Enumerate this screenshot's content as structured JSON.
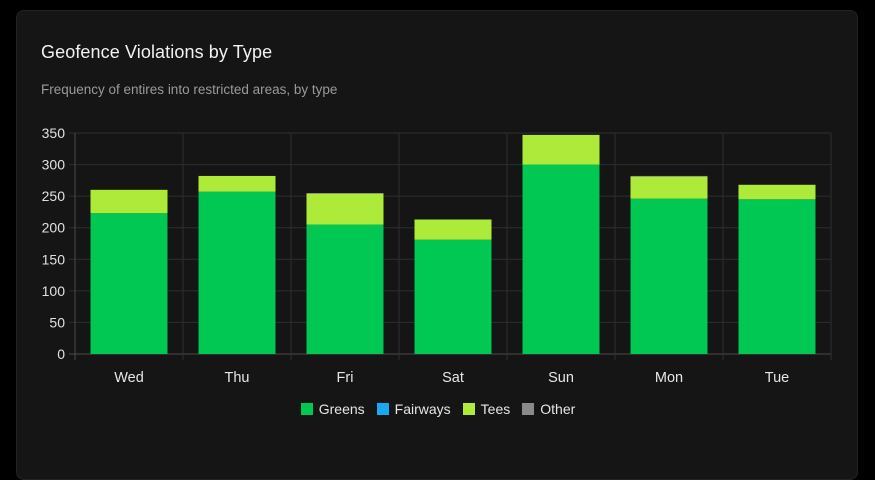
{
  "card": {
    "title": "Geofence Violations by Type",
    "subtitle": "Frequency of entires into restricted areas, by type"
  },
  "chart_data": {
    "type": "bar",
    "stacked": true,
    "title": "Geofence Violations by Type",
    "subtitle": "Frequency of entires into restricted areas, by type",
    "categories": [
      "Wed",
      "Thu",
      "Fri",
      "Sat",
      "Sun",
      "Mon",
      "Tue"
    ],
    "series": [
      {
        "name": "Greens",
        "color": "#00c853",
        "values": [
          223,
          257,
          205,
          181,
          300,
          246,
          245
        ]
      },
      {
        "name": "Fairways",
        "color": "#1ba8f0",
        "values": [
          0,
          0,
          0,
          0,
          0,
          0,
          0
        ]
      },
      {
        "name": "Tees",
        "color": "#aeea3a",
        "values": [
          37,
          25,
          49,
          32,
          47,
          35,
          23
        ]
      },
      {
        "name": "Other",
        "color": "#8a8a8a",
        "values": [
          0,
          0,
          1,
          0,
          0,
          1,
          0
        ]
      }
    ],
    "yticks": [
      0,
      50,
      100,
      150,
      200,
      250,
      300,
      350
    ],
    "ylim": [
      0,
      350
    ],
    "grid": true,
    "legend_position": "bottom"
  }
}
